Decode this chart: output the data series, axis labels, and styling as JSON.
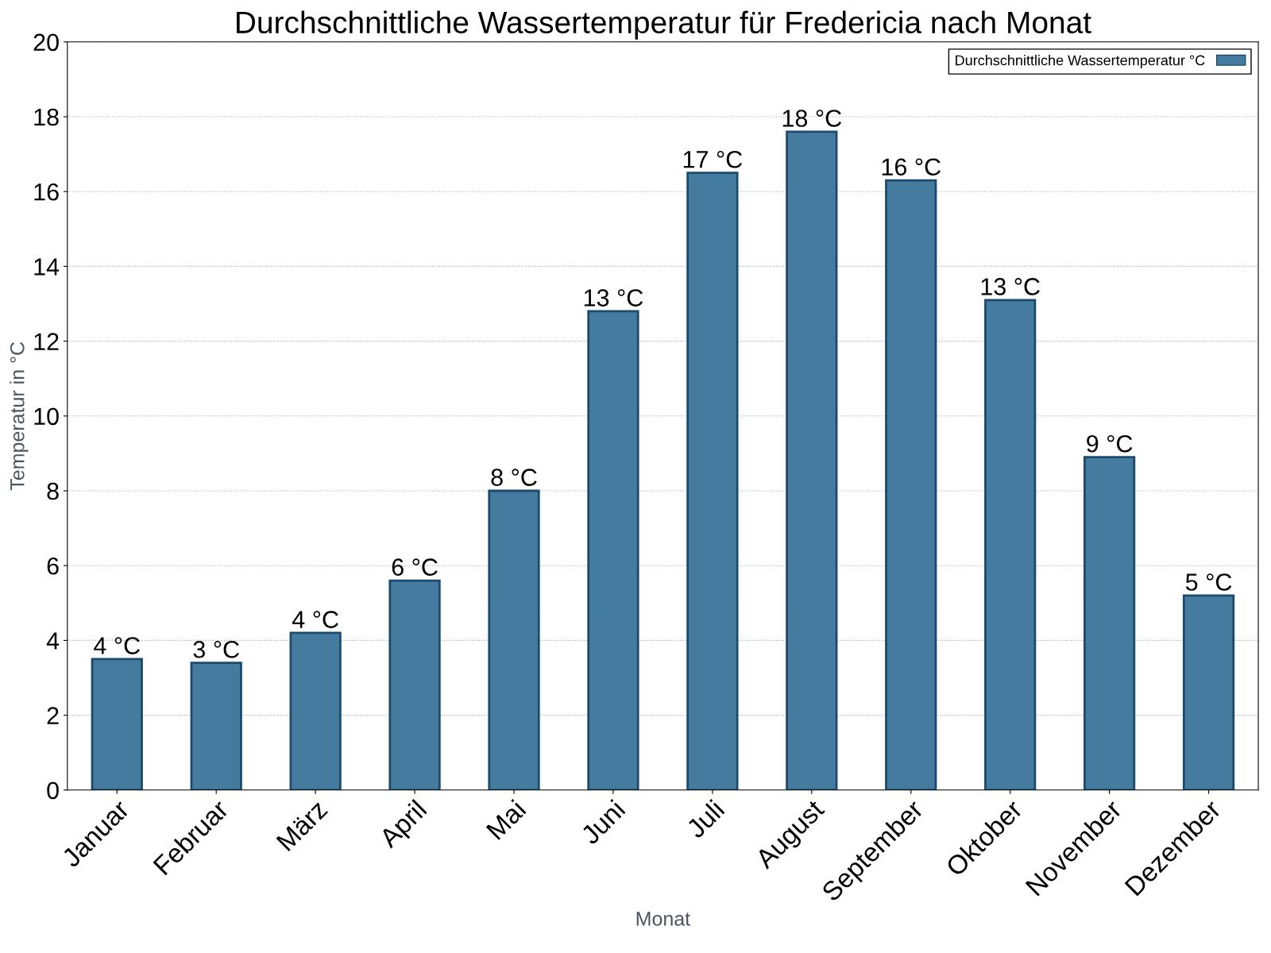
{
  "chart_data": {
    "type": "bar",
    "title": "Durchschnittliche Wassertemperatur für Fredericia nach Monat",
    "xlabel": "Monat",
    "ylabel": "Temperatur in °C",
    "categories": [
      "Januar",
      "Februar",
      "März",
      "April",
      "Mai",
      "Juni",
      "Juli",
      "August",
      "September",
      "Oktober",
      "November",
      "Dezember"
    ],
    "series": [
      {
        "name": "Durchschnittliche Wassertemperatur °C",
        "color": "#467ba0",
        "values": [
          3.5,
          3.4,
          4.2,
          5.6,
          8.0,
          12.8,
          16.5,
          17.6,
          16.3,
          13.1,
          8.9,
          5.2
        ],
        "value_labels": [
          "4 °C",
          "3 °C",
          "4 °C",
          "6 °C",
          "8 °C",
          "13 °C",
          "17 °C",
          "18 °C",
          "16 °C",
          "13 °C",
          "9 °C",
          "5 °C"
        ]
      }
    ],
    "ylim": [
      0,
      20
    ],
    "yticks": [
      0,
      2,
      4,
      6,
      8,
      10,
      12,
      14,
      16,
      18,
      20
    ],
    "grid": "y",
    "legend": "top right"
  }
}
